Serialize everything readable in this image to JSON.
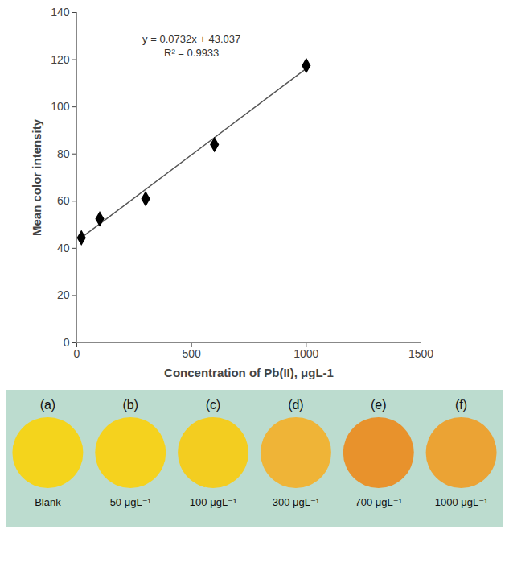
{
  "chart_data": {
    "type": "scatter",
    "x": [
      20,
      100,
      300,
      600,
      1000
    ],
    "values": [
      44.5,
      52.5,
      61,
      84,
      117.5
    ],
    "color": "#000000",
    "marker": "diamond",
    "xlabel": "Concentration of Pb(II), μgL-1",
    "ylabel": "Mean color intensity",
    "xlim": [
      0,
      1500
    ],
    "xticks": [
      0,
      500,
      1000,
      1500
    ],
    "ylim": [
      0,
      140
    ],
    "yticks": [
      0,
      20,
      40,
      60,
      80,
      100,
      120,
      140
    ],
    "grid": false,
    "trendline": {
      "slope": 0.0732,
      "intercept": 43.037,
      "color": "#555555",
      "equation": "y = 0.0732x + 43.037",
      "r_squared_label": "R² = 0.9933"
    }
  },
  "color_strip": {
    "background": "#bcdccf",
    "spots": [
      {
        "letter": "(a)",
        "label": "Blank",
        "color": "#f4d41c"
      },
      {
        "letter": "(b)",
        "label": "50 μgL⁻¹",
        "color": "#f5d21e"
      },
      {
        "letter": "(c)",
        "label": "100 μgL⁻¹",
        "color": "#f3cd20"
      },
      {
        "letter": "(d)",
        "label": "300 μgL⁻¹",
        "color": "#efb437"
      },
      {
        "letter": "(e)",
        "label": "700 μgL⁻¹",
        "color": "#e8922c"
      },
      {
        "letter": "(f)",
        "label": "1000 μgL⁻¹",
        "color": "#eba334"
      }
    ]
  }
}
